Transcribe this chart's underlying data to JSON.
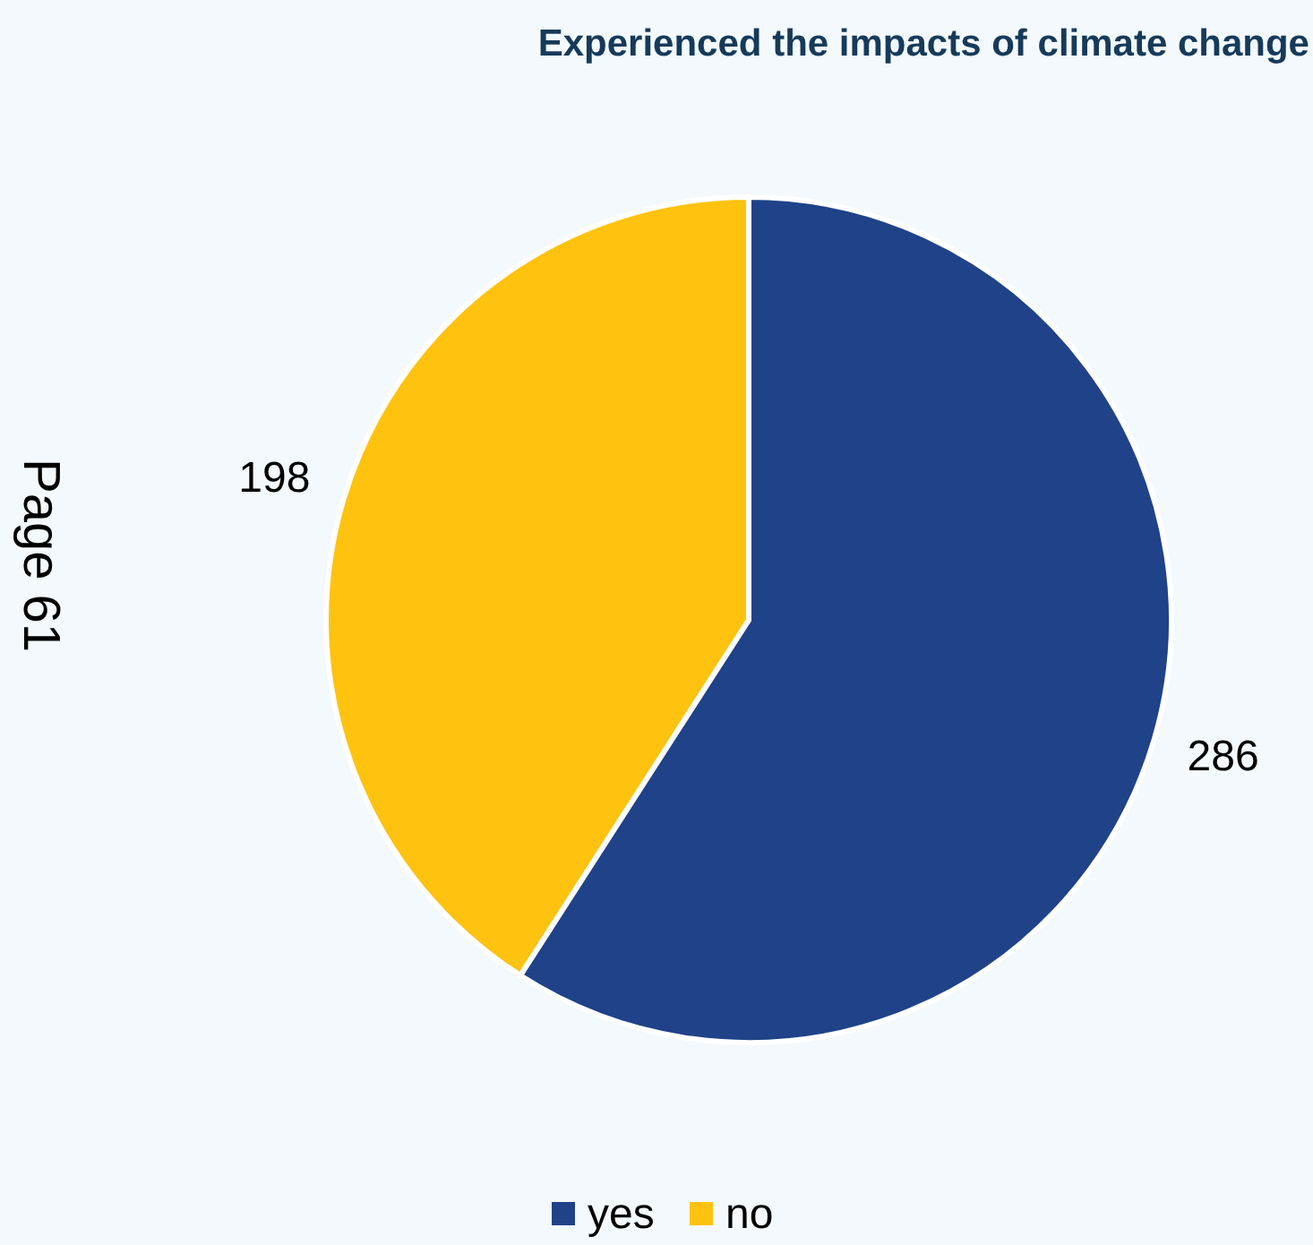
{
  "chart_data": {
    "type": "pie",
    "title": "Experienced the impacts of climate change",
    "categories": [
      "yes",
      "no"
    ],
    "values": [
      286,
      198
    ],
    "colors": [
      "#1f4289",
      "#ffc20e"
    ],
    "data_labels": true,
    "legend": "bottom",
    "annotations": [
      "Page 61"
    ]
  }
}
